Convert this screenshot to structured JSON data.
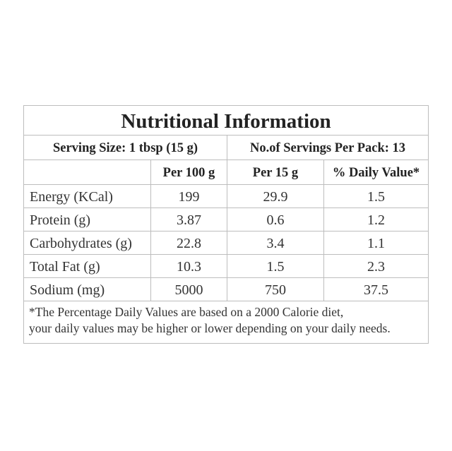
{
  "title": "Nutritional Information",
  "serving": {
    "size": "Serving Size: 1 tbsp (15 g)",
    "servings_per_pack": "No.of Servings Per Pack: 13"
  },
  "columns": [
    "",
    "Per 100 g",
    "Per 15 g",
    "% Daily Value*"
  ],
  "rows": [
    {
      "nutrient": "Energy (KCal)",
      "per100": "199",
      "per15": "29.9",
      "dv": "1.5"
    },
    {
      "nutrient": "Protein (g)",
      "per100": "3.87",
      "per15": "0.6",
      "dv": "1.2"
    },
    {
      "nutrient": "Carbohydrates (g)",
      "per100": "22.8",
      "per15": "3.4",
      "dv": "1.1"
    },
    {
      "nutrient": "Total Fat (g)",
      "per100": "10.3",
      "per15": "1.5",
      "dv": "2.3"
    },
    {
      "nutrient": "Sodium (mg)",
      "per100": "5000",
      "per15": "750",
      "dv": "37.5"
    }
  ],
  "footnote": {
    "line1": "*The Percentage Daily Values are based on a 2000 Calorie diet,",
    "line2": "your daily values may be higher or lower depending on your daily needs."
  }
}
